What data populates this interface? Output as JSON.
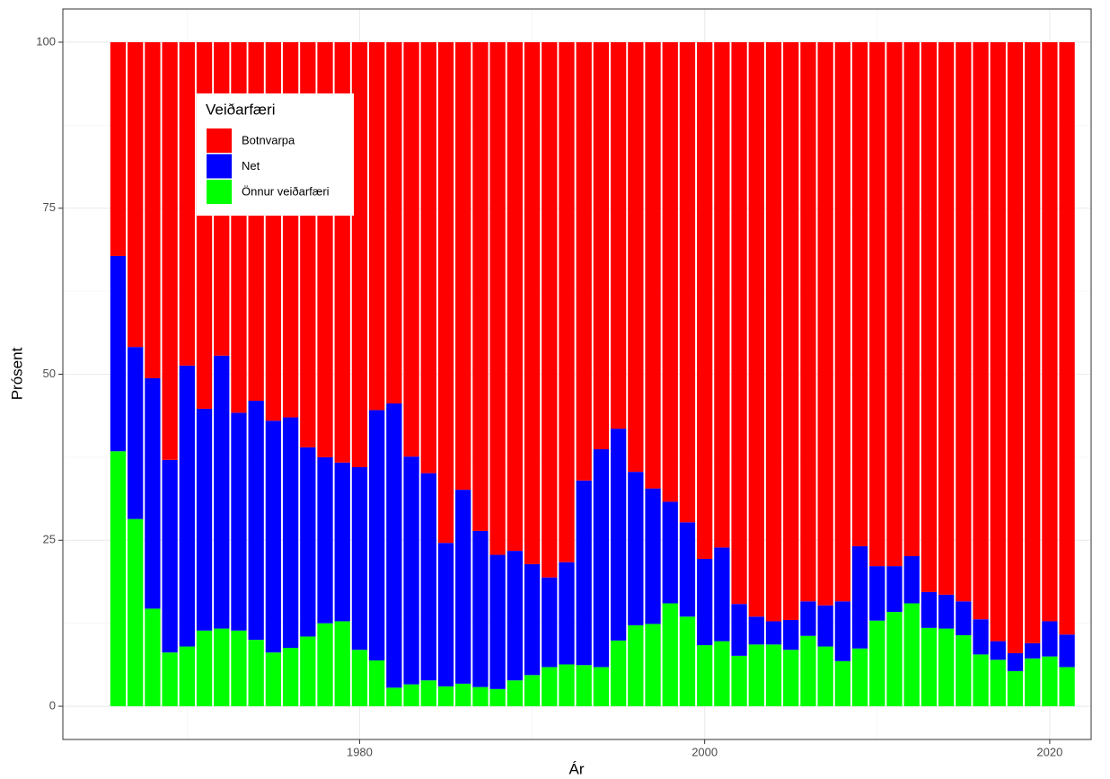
{
  "chart_data": {
    "type": "bar",
    "stacked": true,
    "xlabel": "Ár",
    "ylabel": "Prósent",
    "legend_title": "Veiðarfæri",
    "legend_position": "top-left",
    "x": [
      1966,
      1967,
      1968,
      1969,
      1970,
      1971,
      1972,
      1973,
      1974,
      1975,
      1976,
      1977,
      1978,
      1979,
      1980,
      1981,
      1982,
      1983,
      1984,
      1985,
      1986,
      1987,
      1988,
      1989,
      1990,
      1991,
      1992,
      1993,
      1994,
      1995,
      1996,
      1997,
      1998,
      1999,
      2000,
      2001,
      2002,
      2003,
      2004,
      2005,
      2006,
      2007,
      2008,
      2009,
      2010,
      2011,
      2012,
      2013,
      2014,
      2015,
      2016,
      2017,
      2018,
      2019,
      2020,
      2021
    ],
    "series": [
      {
        "name": "Botnvarpa",
        "color": "#ff0000",
        "values": [
          32.2,
          45.9,
          50.6,
          62.9,
          48.7,
          55.2,
          47.2,
          55.8,
          54.0,
          57.0,
          56.5,
          61.0,
          62.5,
          63.3,
          64.0,
          55.4,
          54.4,
          62.4,
          64.9,
          75.4,
          67.4,
          73.6,
          77.2,
          76.6,
          78.6,
          80.6,
          78.3,
          66.0,
          61.3,
          58.2,
          64.7,
          67.2,
          69.2,
          72.3,
          77.8,
          76.1,
          84.6,
          86.5,
          87.2,
          87.0,
          84.2,
          84.8,
          84.2,
          75.9,
          78.9,
          78.9,
          77.4,
          82.8,
          83.2,
          84.2,
          86.9,
          90.2,
          92.0,
          90.5,
          87.2,
          89.2
        ]
      },
      {
        "name": "Net",
        "color": "#0000ff",
        "values": [
          29.4,
          25.9,
          34.7,
          29.0,
          42.3,
          33.4,
          41.1,
          32.8,
          36.0,
          34.9,
          34.7,
          28.5,
          25.0,
          23.9,
          27.5,
          37.7,
          42.8,
          34.3,
          31.2,
          21.6,
          29.2,
          23.5,
          20.2,
          19.5,
          16.7,
          13.5,
          15.4,
          27.8,
          32.8,
          31.9,
          23.1,
          20.4,
          15.3,
          14.2,
          13.0,
          14.1,
          7.8,
          4.2,
          3.5,
          4.5,
          5.2,
          6.2,
          9.0,
          15.4,
          8.2,
          6.9,
          7.1,
          5.4,
          5.1,
          5.1,
          5.3,
          2.8,
          2.7,
          2.3,
          5.3,
          4.9
        ]
      },
      {
        "name": "Önnur veiðarfæri",
        "color": "#00ff00",
        "values": [
          38.4,
          28.2,
          14.7,
          8.1,
          9.0,
          11.4,
          11.7,
          11.4,
          10.0,
          8.1,
          8.8,
          10.5,
          12.5,
          12.8,
          8.5,
          6.9,
          2.8,
          3.3,
          3.9,
          3.0,
          3.4,
          2.9,
          2.6,
          3.9,
          4.7,
          5.9,
          6.3,
          6.2,
          5.9,
          9.9,
          12.2,
          12.4,
          15.5,
          13.5,
          9.2,
          9.8,
          7.6,
          9.3,
          9.3,
          8.5,
          10.6,
          9.0,
          6.8,
          8.7,
          12.9,
          14.2,
          15.5,
          11.8,
          11.7,
          10.7,
          7.8,
          7.0,
          5.3,
          7.2,
          7.5,
          5.9
        ]
      }
    ],
    "xlim": [
      1962.8,
      2022.4
    ],
    "xticks": [
      1980,
      2000,
      2020
    ],
    "ylim": [
      -5,
      105
    ],
    "yticks": [
      0,
      25,
      50,
      75,
      100
    ],
    "grid": true
  }
}
